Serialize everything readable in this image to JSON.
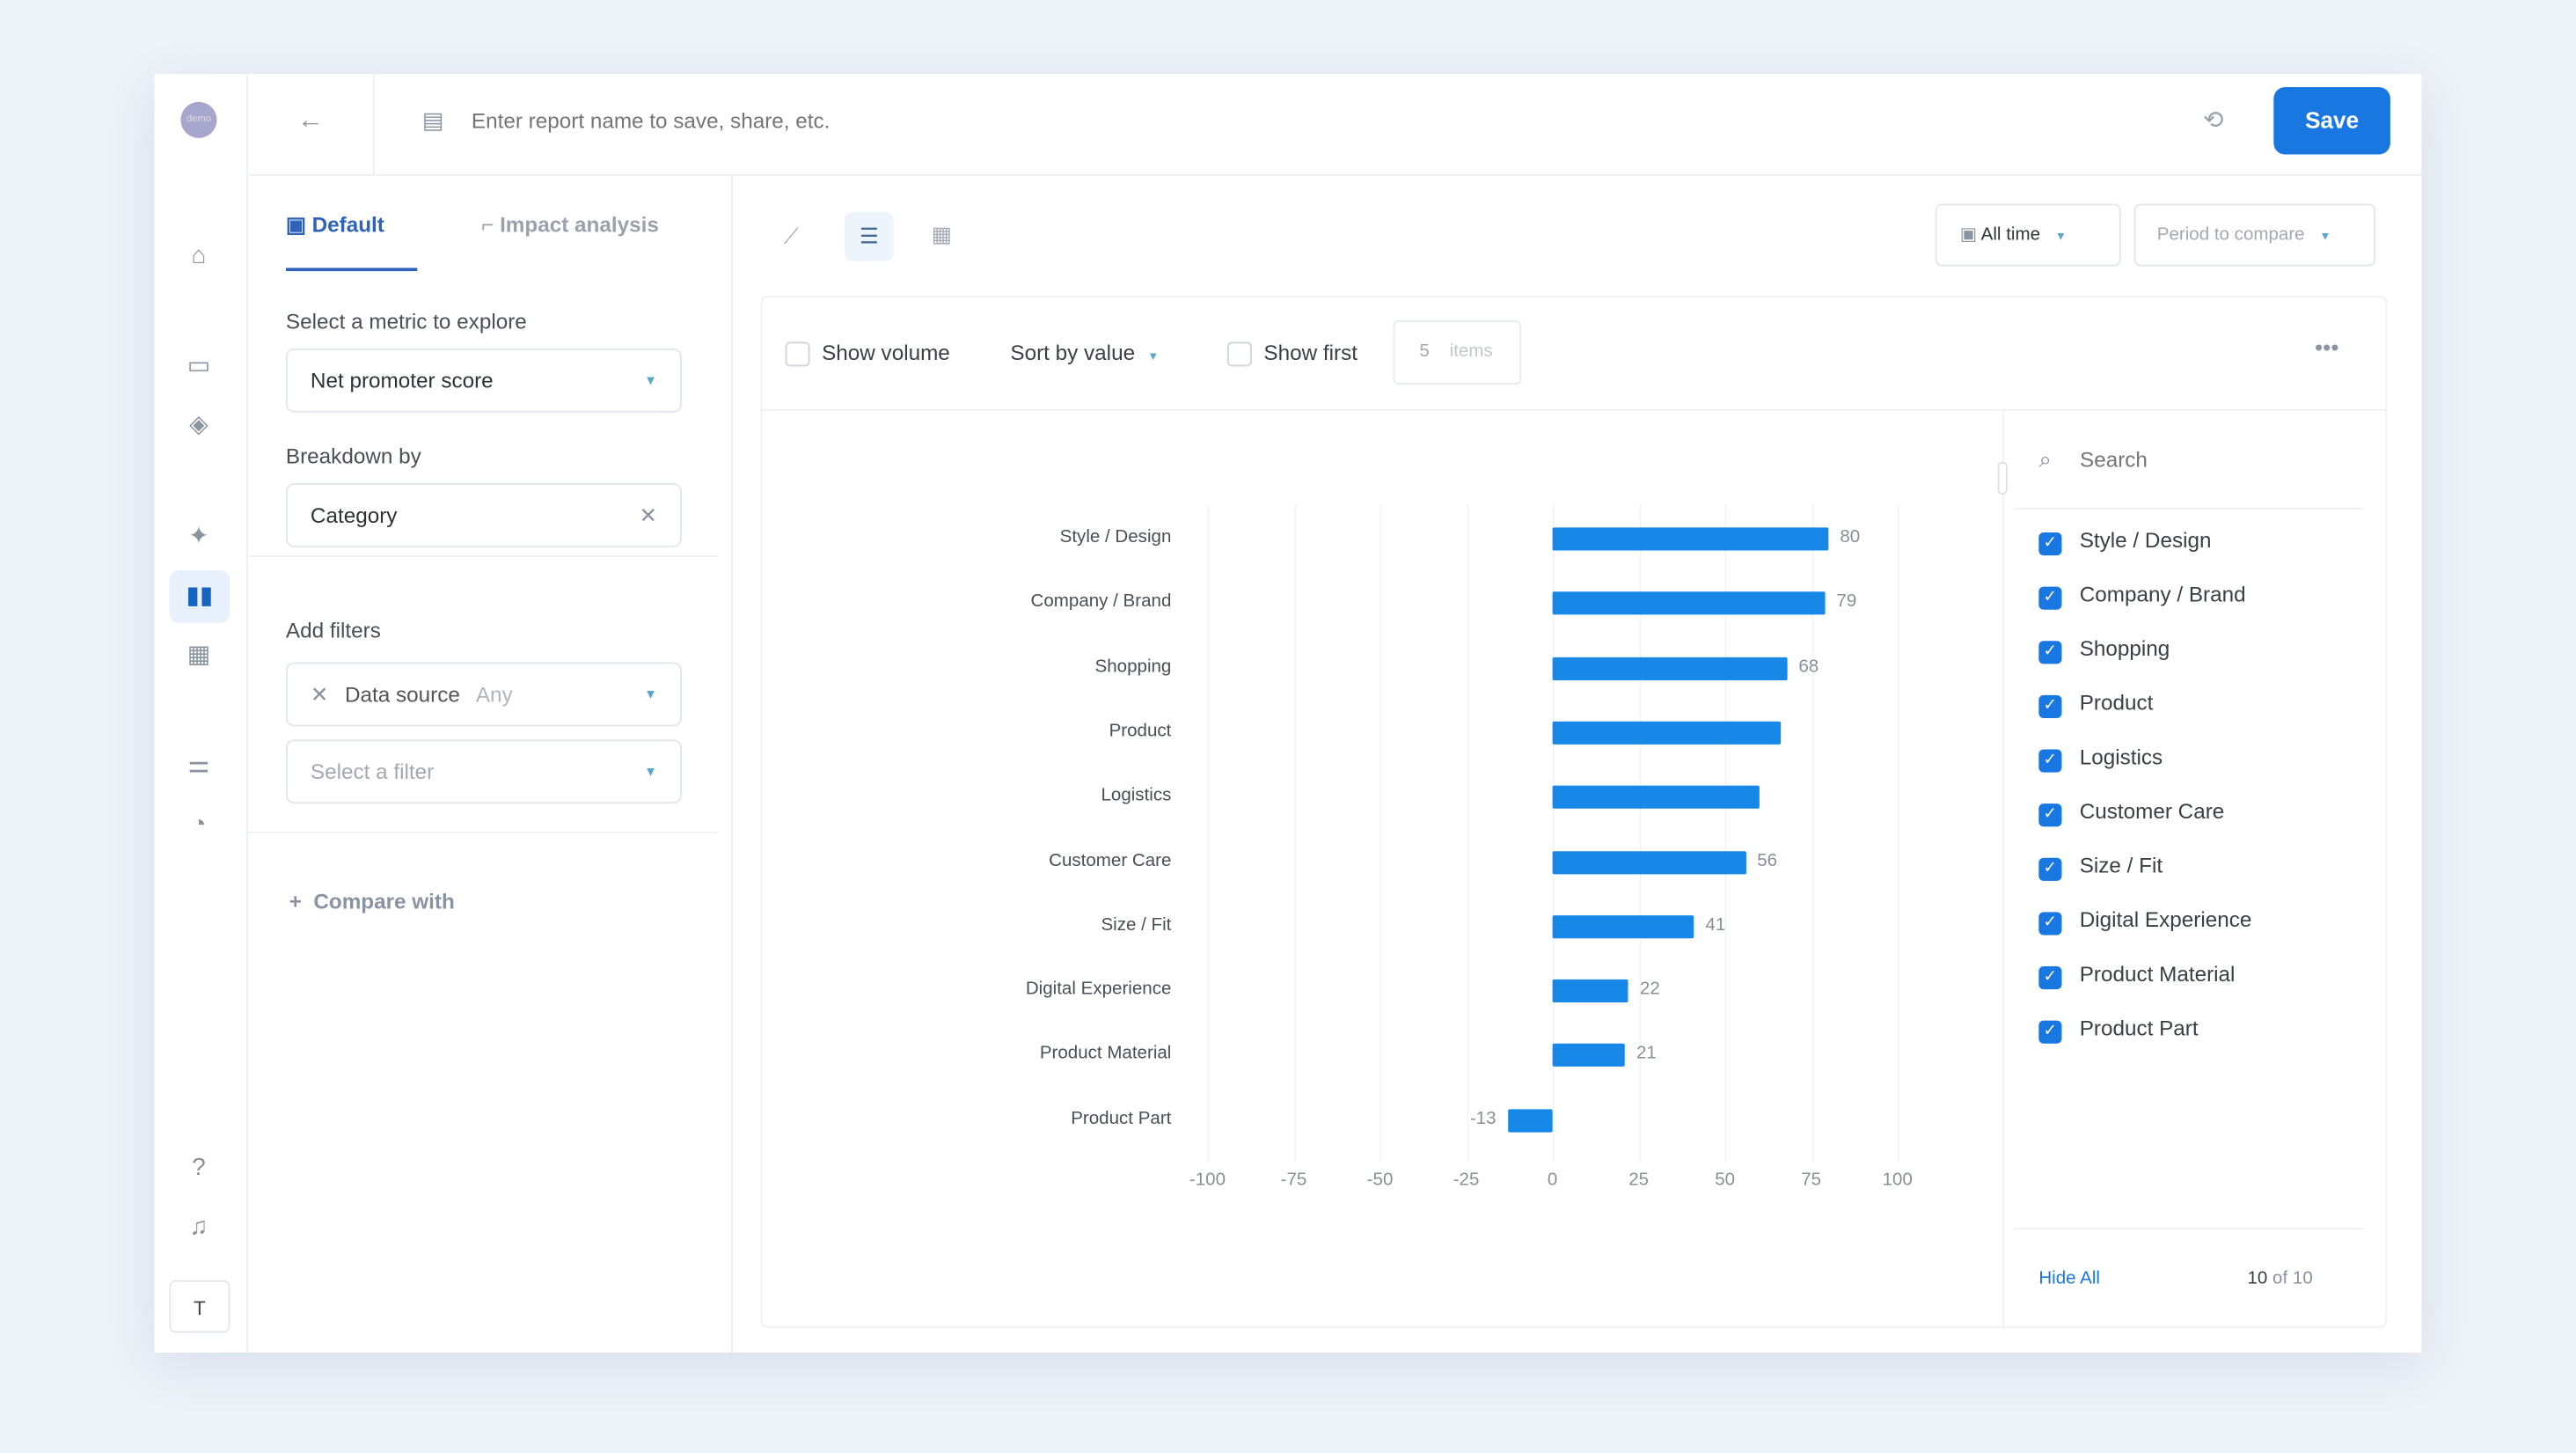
{
  "app": {
    "avatar_text": "demo",
    "report_name_placeholder": "Enter report name to save, share, etc.",
    "save_label": "Save"
  },
  "tabs": [
    {
      "label": "Default"
    },
    {
      "label": "Impact analysis"
    }
  ],
  "panel": {
    "metric_label": "Select a metric to explore",
    "metric_value": "Net promoter score",
    "breakdown_label": "Breakdown by",
    "breakdown_value": "Category",
    "filters_label": "Add filters",
    "filter_name": "Data source",
    "filter_value": "Any",
    "filter_placeholder": "Select a filter",
    "compare_label": "Compare with"
  },
  "toolbar": {
    "date_range": "All time",
    "compare_period": "Period to compare",
    "show_volume": "Show volume",
    "sort": "Sort by value",
    "show_first": "Show first",
    "items_count": "5",
    "items_label": "items"
  },
  "legend": {
    "search_placeholder": "Search",
    "hide_all": "Hide All",
    "count": "10",
    "count_of": "of 10"
  },
  "chart_data": {
    "type": "bar",
    "orientation": "horizontal",
    "categories": [
      "Style / Design",
      "Company / Brand",
      "Shopping",
      "Product",
      "Logistics",
      "Customer Care",
      "Size / Fit",
      "Digital Experience",
      "Product Material",
      "Product Part"
    ],
    "values": [
      80,
      79,
      68,
      66,
      60,
      56,
      41,
      22,
      21,
      -13
    ],
    "labels": [
      "80",
      "79",
      "68",
      "",
      "",
      "56",
      "41",
      "22",
      "21",
      "-13"
    ],
    "xlim": [
      -100,
      100
    ],
    "xticks": [
      "-100",
      "-75",
      "-50",
      "-25",
      "0",
      "25",
      "50",
      "75",
      "100"
    ],
    "color": "#1787e8"
  }
}
